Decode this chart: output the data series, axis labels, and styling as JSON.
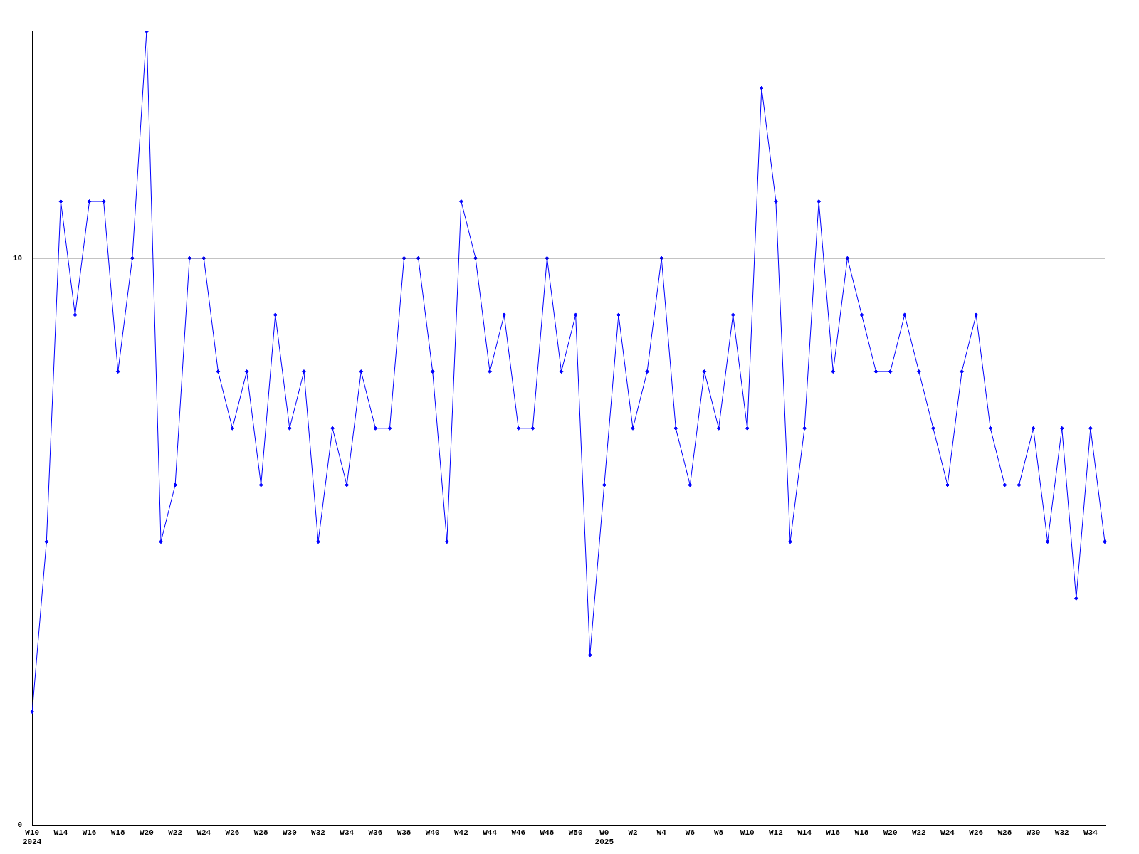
{
  "chart_data": {
    "type": "line",
    "categories": [
      "W10\n2024",
      null,
      "W14",
      null,
      "W16",
      null,
      "W18",
      null,
      "W20",
      null,
      "W22",
      null,
      "W24",
      null,
      "W26",
      null,
      "W28",
      null,
      "W30",
      null,
      "W32",
      null,
      "W34",
      null,
      "W36",
      null,
      "W38",
      null,
      "W40",
      null,
      "W42",
      null,
      "W44",
      null,
      "W46",
      null,
      "W48",
      null,
      "W50",
      null,
      "W0\n2025",
      null,
      "W2",
      null,
      "W4",
      null,
      "W6",
      null,
      "W8",
      null,
      "W10",
      null,
      "W12",
      null,
      "W14",
      null,
      "W16",
      null,
      "W18",
      null,
      "W20",
      null,
      "W22",
      null,
      "W24",
      null,
      "W26",
      null,
      "W28",
      null,
      "W30",
      null,
      "W32",
      null,
      "W34",
      null
    ],
    "series": [
      {
        "color": "#0000ff",
        "values": [
          2,
          5,
          11,
          9,
          11,
          11,
          8,
          10,
          14,
          5,
          6,
          10,
          10,
          8,
          7,
          8,
          6,
          9,
          7,
          8,
          5,
          7,
          6,
          8,
          7,
          7,
          10,
          10,
          8,
          5,
          11,
          10,
          8,
          9,
          7,
          7,
          10,
          8,
          9,
          3,
          6,
          9,
          7,
          8,
          10,
          7,
          6,
          8,
          7,
          9,
          7,
          13,
          11,
          5,
          7,
          11,
          8,
          10,
          9,
          8,
          8,
          9,
          8,
          7,
          6,
          8,
          9,
          7,
          6,
          6,
          7,
          5,
          7,
          4,
          7,
          5
        ]
      }
    ],
    "ylim": [
      0,
      14
    ],
    "yticks": [
      0,
      10
    ],
    "ref_lines": [
      {
        "axis": "y",
        "value": 10,
        "color": "#000000"
      }
    ],
    "marker": "diamond",
    "grid": false,
    "legend": false
  }
}
